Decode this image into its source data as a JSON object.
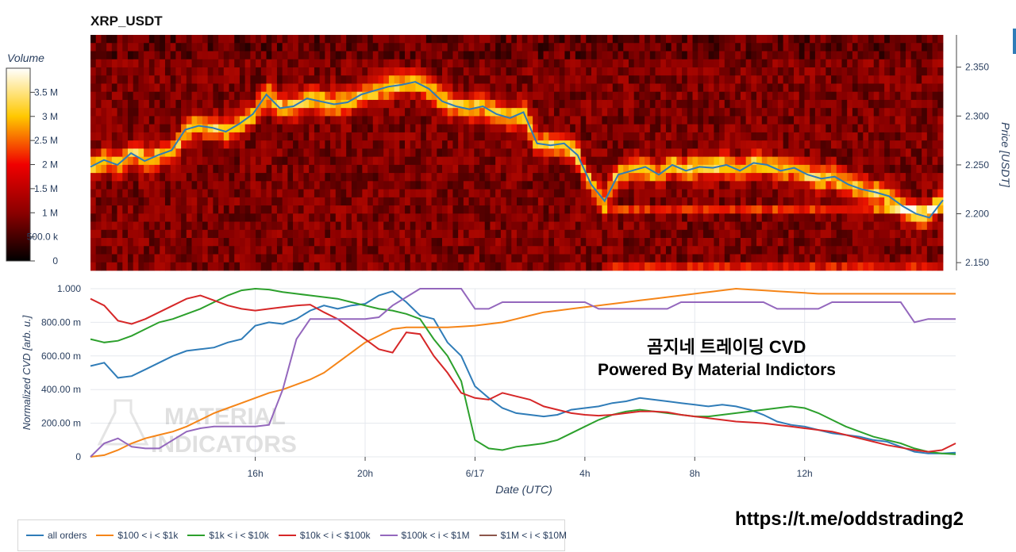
{
  "title": "XRP_USDT",
  "overlay": {
    "line1": "곰지네 트레이딩 CVD",
    "line2": "Powered By Material Indictors",
    "watermark1": "MATERIAL",
    "watermark2": "INDICATORS",
    "link": "https://t.me/oddstrading2"
  },
  "colors": {
    "price_line": "#2f7cb8",
    "grid": "#e5e8ee"
  },
  "chart_data": [
    {
      "type": "heatmap",
      "title": "XRP_USDT",
      "ylabel": "Price [USDT]",
      "ylim": [
        2.142,
        2.383
      ],
      "yticks": [
        "2.150",
        "2.200",
        "2.250",
        "2.300",
        "2.350"
      ],
      "ytick_values": [
        2.15,
        2.2,
        2.25,
        2.3,
        2.35
      ],
      "colorbar": {
        "title": "Volume",
        "labels": [
          "0",
          "500.0 k",
          "1 M",
          "1.5 M",
          "2 M",
          "2.5 M",
          "3 M",
          "3.5 M"
        ],
        "values": [
          0,
          500000,
          1000000,
          1500000,
          2000000,
          2500000,
          3000000,
          3500000
        ],
        "max": 4000000,
        "colorscale": [
          "#000000",
          "#e60000",
          "#ffd200",
          "#ffffff"
        ]
      },
      "x_hours": [
        0,
        1,
        2,
        3,
        4,
        5,
        6,
        7,
        8,
        9,
        10,
        11,
        12,
        13,
        14,
        15,
        16,
        17,
        18,
        19,
        20,
        21,
        22,
        23,
        24,
        25,
        26,
        27,
        28,
        29,
        30,
        31,
        32,
        33,
        34,
        35,
        36,
        37,
        38,
        39,
        40,
        41,
        42,
        43,
        44,
        45,
        46,
        47,
        48,
        49,
        50,
        51,
        52,
        53,
        54,
        55,
        56,
        57,
        58,
        59,
        60,
        61,
        62,
        63
      ],
      "price_series": {
        "name": "price",
        "values": [
          2.248,
          2.255,
          2.25,
          2.262,
          2.254,
          2.26,
          2.265,
          2.286,
          2.29,
          2.288,
          2.284,
          2.292,
          2.302,
          2.322,
          2.308,
          2.31,
          2.318,
          2.315,
          2.312,
          2.314,
          2.322,
          2.326,
          2.33,
          2.332,
          2.335,
          2.328,
          2.315,
          2.31,
          2.307,
          2.31,
          2.302,
          2.298,
          2.304,
          2.272,
          2.27,
          2.272,
          2.26,
          2.23,
          2.213,
          2.24,
          2.244,
          2.248,
          2.24,
          2.25,
          2.244,
          2.248,
          2.247,
          2.25,
          2.244,
          2.252,
          2.25,
          2.244,
          2.247,
          2.24,
          2.236,
          2.238,
          2.23,
          2.225,
          2.222,
          2.218,
          2.208,
          2.2,
          2.196,
          2.214
        ]
      }
    },
    {
      "type": "line",
      "title": "",
      "xlabel": "Date (UTC)",
      "ylabel": "Normalized CVD [arb. u.]",
      "ylim": [
        0,
        1000
      ],
      "x_hours": [
        0,
        1,
        2,
        3,
        4,
        5,
        6,
        7,
        8,
        9,
        10,
        11,
        12,
        13,
        14,
        15,
        16,
        17,
        18,
        19,
        20,
        21,
        22,
        23,
        24,
        25,
        26,
        27,
        28,
        29,
        30,
        31,
        32,
        33,
        34,
        35,
        36,
        37,
        38,
        39,
        40,
        41,
        42,
        43,
        44,
        45,
        46,
        47,
        48,
        49,
        50,
        51,
        52,
        53,
        54,
        55,
        56,
        57,
        58,
        59,
        60,
        61,
        62,
        63
      ],
      "x_tick_labels": [
        "16h",
        "20h",
        "6/17",
        "4h",
        "8h",
        "12h"
      ],
      "x_tick_positions": [
        12,
        20,
        28,
        36,
        44,
        52
      ],
      "y_tick_labels": [
        "0",
        "200.00 m",
        "400.00 m",
        "600.00 m",
        "800.00 m",
        "1.000"
      ],
      "y_tick_values": [
        0,
        200,
        400,
        600,
        800,
        1000
      ],
      "series": [
        {
          "name": "all orders",
          "color": "#2f7cb8",
          "values": [
            540,
            560,
            470,
            480,
            520,
            560,
            600,
            630,
            640,
            650,
            680,
            700,
            780,
            800,
            790,
            820,
            870,
            900,
            880,
            900,
            910,
            960,
            985,
            920,
            840,
            820,
            680,
            600,
            420,
            350,
            290,
            260,
            250,
            240,
            250,
            280,
            290,
            300,
            320,
            330,
            350,
            340,
            330,
            320,
            310,
            300,
            310,
            300,
            280,
            250,
            210,
            190,
            180,
            160,
            140,
            130,
            120,
            100,
            90,
            60,
            30,
            20,
            20,
            25
          ]
        },
        {
          "name": "$100 < i < $1k",
          "color": "#f58518",
          "values": [
            0,
            10,
            40,
            80,
            110,
            130,
            150,
            180,
            220,
            260,
            290,
            320,
            350,
            380,
            400,
            430,
            460,
            500,
            560,
            620,
            680,
            720,
            760,
            770,
            770,
            770,
            770,
            775,
            780,
            790,
            800,
            820,
            840,
            860,
            870,
            880,
            890,
            900,
            910,
            920,
            930,
            940,
            950,
            960,
            970,
            980,
            990,
            1000,
            995,
            990,
            985,
            980,
            975,
            970,
            970,
            970,
            970,
            970,
            970,
            970,
            970,
            970,
            970,
            970
          ]
        },
        {
          "name": "$1k < i < $10k",
          "color": "#2ca02c",
          "values": [
            700,
            680,
            690,
            720,
            760,
            800,
            820,
            850,
            880,
            920,
            960,
            990,
            1000,
            995,
            980,
            970,
            960,
            950,
            940,
            920,
            900,
            880,
            870,
            850,
            820,
            700,
            600,
            450,
            100,
            50,
            40,
            60,
            70,
            80,
            100,
            140,
            180,
            220,
            250,
            270,
            280,
            270,
            260,
            250,
            240,
            240,
            250,
            260,
            270,
            280,
            290,
            300,
            290,
            260,
            220,
            180,
            150,
            120,
            100,
            80,
            50,
            30,
            20,
            15
          ]
        },
        {
          "name": "$10k < i < $100k",
          "color": "#d62728",
          "values": [
            940,
            900,
            810,
            790,
            820,
            860,
            900,
            940,
            960,
            930,
            900,
            880,
            870,
            880,
            890,
            900,
            905,
            860,
            820,
            760,
            700,
            640,
            620,
            740,
            730,
            600,
            500,
            380,
            350,
            340,
            380,
            360,
            340,
            300,
            280,
            260,
            250,
            245,
            250,
            260,
            270,
            270,
            265,
            250,
            240,
            230,
            220,
            210,
            205,
            200,
            190,
            180,
            170,
            160,
            150,
            130,
            110,
            90,
            70,
            55,
            40,
            30,
            40,
            80
          ]
        },
        {
          "name": "$100k < i < $1M",
          "color": "#9467bd",
          "values": [
            0,
            80,
            110,
            60,
            50,
            50,
            100,
            150,
            170,
            180,
            180,
            180,
            180,
            190,
            400,
            700,
            820,
            820,
            820,
            820,
            820,
            830,
            900,
            950,
            1000,
            1000,
            1000,
            1000,
            880,
            880,
            920,
            920,
            920,
            920,
            920,
            920,
            920,
            880,
            880,
            880,
            880,
            880,
            880,
            920,
            920,
            920,
            920,
            920,
            920,
            920,
            880,
            880,
            880,
            880,
            920,
            920,
            920,
            920,
            920,
            920,
            800,
            820,
            820,
            820
          ]
        },
        {
          "name": "$1M < i < $10M",
          "color": "#8c564b",
          "values": []
        }
      ],
      "legend": "bottom"
    }
  ]
}
